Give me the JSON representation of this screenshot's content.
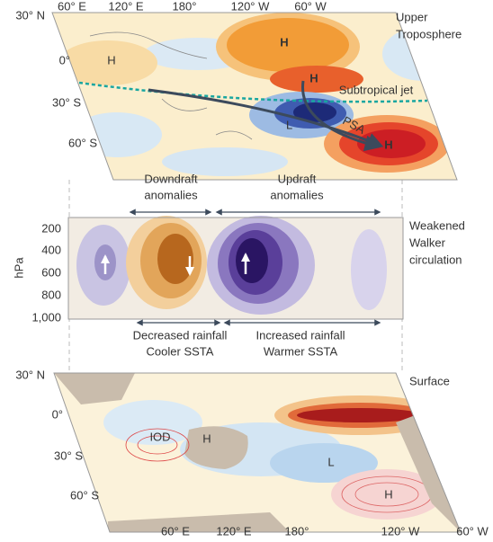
{
  "upper_panel": {
    "label_lines": [
      "Upper",
      "Troposphere"
    ],
    "lat_labels": [
      "30° N",
      "0°",
      "30° S",
      "60° S"
    ],
    "lon_labels": [
      "60° E",
      "120° E",
      "180°",
      "120° W",
      "60° W"
    ],
    "highs": [
      "H",
      "H",
      "H",
      "H"
    ],
    "low": "L",
    "jet_label": "Subtropical jet",
    "psa_label": "PSA"
  },
  "walker_panel": {
    "label_lines": [
      "Weakened",
      "Walker",
      "circulation"
    ],
    "y_axis_label": "hPa",
    "y_ticks": [
      "200",
      "400",
      "600",
      "800",
      "1,000"
    ],
    "downdraft_lines": [
      "Downdraft",
      "anomalies"
    ],
    "updraft_lines": [
      "Updraft",
      "anomalies"
    ],
    "left_rainfall_lines": [
      "Decreased rainfall",
      "Cooler SSTA"
    ],
    "right_rainfall_lines": [
      "Increased rainfall",
      "Warmer SSTA"
    ]
  },
  "surface_panel": {
    "label": "Surface",
    "lat_labels": [
      "30° N",
      "0°",
      "30° S",
      "60° S"
    ],
    "lon_labels": [
      "60° E",
      "120° E",
      "180°",
      "120° W",
      "60° W"
    ],
    "iod_label": "IOD",
    "highs": [
      "H",
      "H"
    ],
    "low": "L"
  }
}
